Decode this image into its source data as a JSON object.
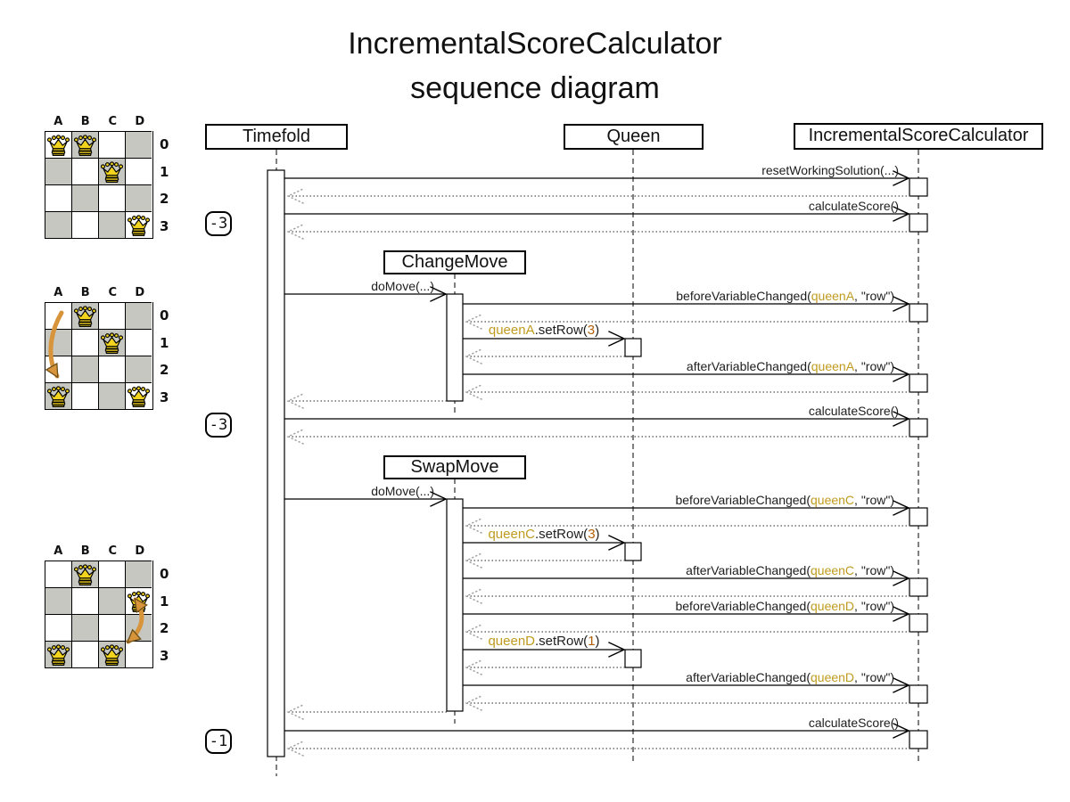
{
  "title": {
    "line1": "IncrementalScoreCalculator",
    "line2": "sequence diagram"
  },
  "participants": [
    {
      "name": "Timefold"
    },
    {
      "name": "Queen"
    },
    {
      "name": "IncrementalScoreCalculator"
    }
  ],
  "fragments": [
    {
      "name": "ChangeMove"
    },
    {
      "name": "SwapMove"
    }
  ],
  "scores": [
    "-3",
    "-3",
    "-1"
  ],
  "colors": {
    "queen_reference": "#c09b1f",
    "value_reference": "#b45f06",
    "board_dark_cell": "#c5c7c0",
    "queen_piece_fill": "#f2d41f",
    "move_arrow": "#d8943a",
    "return_arrow": "#9d9d9d"
  },
  "messages": {
    "reset": {
      "label": "resetWorkingSolution(...)"
    },
    "calculate1": {
      "label": "calculateScore()"
    },
    "do_move1": {
      "label": "doMove(...)"
    },
    "before_a": {
      "pre": "beforeVariableChanged(",
      "arg": "queenA",
      "post": ", \"row\")"
    },
    "set_a": {
      "obj": "queenA",
      "method": ".setRow(",
      "value": "3",
      "close": ")"
    },
    "after_a": {
      "pre": "afterVariableChanged(",
      "arg": "queenA",
      "post": ", \"row\")"
    },
    "calculate2": {
      "label": "calculateScore()"
    },
    "do_move2": {
      "label": "doMove(...)"
    },
    "before_c": {
      "pre": "beforeVariableChanged(",
      "arg": "queenC",
      "post": ", \"row\")"
    },
    "set_c": {
      "obj": "queenC",
      "method": ".setRow(",
      "value": "3",
      "close": ")"
    },
    "after_c": {
      "pre": "afterVariableChanged(",
      "arg": "queenC",
      "post": ", \"row\")"
    },
    "before_d": {
      "pre": "beforeVariableChanged(",
      "arg": "queenD",
      "post": ", \"row\")"
    },
    "set_d": {
      "obj": "queenD",
      "method": ".setRow(",
      "value": "1",
      "close": ")"
    },
    "after_d": {
      "pre": "afterVariableChanged(",
      "arg": "queenD",
      "post": ", \"row\")"
    },
    "calculate3": {
      "label": "calculateScore()"
    }
  },
  "boards": [
    {
      "columns": [
        "A",
        "B",
        "C",
        "D"
      ],
      "rows": [
        "0",
        "1",
        "2",
        "3"
      ],
      "queens": [
        "A0",
        "B0",
        "C1",
        "D3"
      ]
    },
    {
      "columns": [
        "A",
        "B",
        "C",
        "D"
      ],
      "rows": [
        "0",
        "1",
        "2",
        "3"
      ],
      "queens": [
        "B0",
        "C1",
        "A3",
        "D3"
      ],
      "arrow": {
        "from": "A0",
        "to": "A3",
        "double_headed": false
      }
    },
    {
      "columns": [
        "A",
        "B",
        "C",
        "D"
      ],
      "rows": [
        "0",
        "1",
        "2",
        "3"
      ],
      "queens": [
        "B0",
        "D1",
        "A3",
        "C3"
      ],
      "arrow": {
        "from": "D1",
        "to": "C3",
        "double_headed": true
      }
    }
  ]
}
